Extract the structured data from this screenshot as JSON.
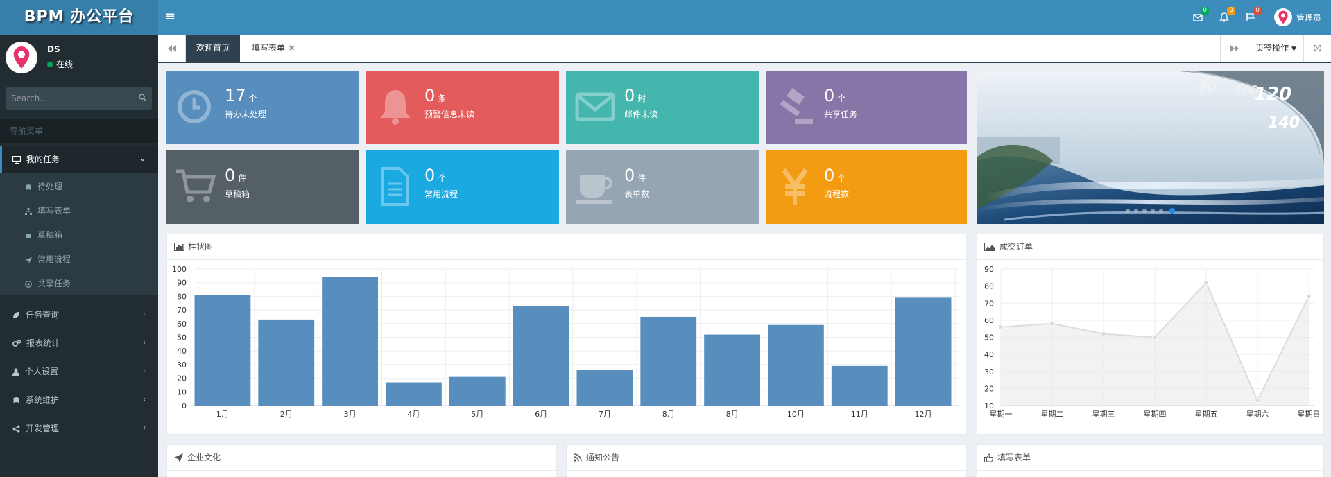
{
  "header": {
    "logo": "BPM 办公平台",
    "menu_toggle": "≡",
    "badges": {
      "mail": "0",
      "bell": "0",
      "flag": "0"
    },
    "user": "管理员"
  },
  "sidebar": {
    "user_name": "DS",
    "status": "在线",
    "search_placeholder": "Search...",
    "nav_header": "导航菜单",
    "items": [
      {
        "label": "我的任务",
        "icon": "monitor-icon"
      },
      {
        "label": "任务查询",
        "icon": "leaf-icon"
      },
      {
        "label": "报表统计",
        "icon": "cogs-icon"
      },
      {
        "label": "个人设置",
        "icon": "user-icon"
      },
      {
        "label": "系统维护",
        "icon": "book-icon"
      },
      {
        "label": "开发管理",
        "icon": "share-icon"
      }
    ],
    "sub_items": [
      {
        "label": "待处理",
        "icon": "book-icon"
      },
      {
        "label": "填写表单",
        "icon": "sitemap-icon"
      },
      {
        "label": "草稿箱",
        "icon": "car-icon"
      },
      {
        "label": "常用流程",
        "icon": "plane-icon"
      },
      {
        "label": "共享任务",
        "icon": "bullseye-icon"
      }
    ]
  },
  "tabs": {
    "items": [
      {
        "label": "欢迎首页"
      },
      {
        "label": "填写表单"
      }
    ],
    "ops_label": "页签操作"
  },
  "tiles": [
    {
      "value": "17",
      "unit": "个",
      "label": "待办未处理",
      "color": "#578ebe",
      "icon": "clock-icon"
    },
    {
      "value": "0",
      "unit": "条",
      "label": "预警信息未读",
      "color": "#e35b5a",
      "icon": "bell-icon"
    },
    {
      "value": "0",
      "unit": "封",
      "label": "邮件未读",
      "color": "#44b6ae",
      "icon": "envelope-icon"
    },
    {
      "value": "0",
      "unit": "个",
      "label": "共享任务",
      "color": "#8775a7",
      "icon": "gavel-icon"
    },
    {
      "value": "0",
      "unit": "件",
      "label": "草稿箱",
      "color": "#555f66",
      "icon": "cart-icon"
    },
    {
      "value": "0",
      "unit": "个",
      "label": "常用流程",
      "color": "#1ba9e1",
      "icon": "file-icon"
    },
    {
      "value": "0",
      "unit": "件",
      "label": "表单数",
      "color": "#95a5b3",
      "icon": "coffee-icon"
    },
    {
      "value": "0",
      "unit": "个",
      "label": "流程数",
      "color": "#f39c12",
      "icon": "yen-icon"
    }
  ],
  "panels": {
    "bar_title": "柱状图",
    "line_title": "成交订单",
    "culture_title": "企业文化",
    "notice_title": "通知公告",
    "form_title": "填写表单"
  },
  "chart_data": [
    {
      "type": "bar",
      "title": "柱状图",
      "categories": [
        "1月",
        "2月",
        "3月",
        "4月",
        "5月",
        "6月",
        "7月",
        "8月",
        "8月",
        "10月",
        "11月",
        "12月"
      ],
      "values": [
        81,
        63,
        94,
        17,
        21,
        73,
        26,
        65,
        52,
        59,
        29,
        79
      ],
      "ylim": [
        0,
        100
      ],
      "yticks": [
        0,
        10,
        20,
        30,
        40,
        50,
        60,
        70,
        80,
        90,
        100
      ],
      "color": "#578ebe",
      "grid": true
    },
    {
      "type": "area",
      "title": "成交订单",
      "categories": [
        "星期一",
        "星期二",
        "星期三",
        "星期四",
        "星期五",
        "星期六",
        "星期日"
      ],
      "values": [
        56,
        58,
        52,
        50,
        82,
        13,
        74
      ],
      "ylim": [
        10,
        90
      ],
      "yticks": [
        10,
        20,
        30,
        40,
        50,
        60,
        70,
        80,
        90
      ],
      "color": "#dcdcdc",
      "grid": true
    }
  ]
}
